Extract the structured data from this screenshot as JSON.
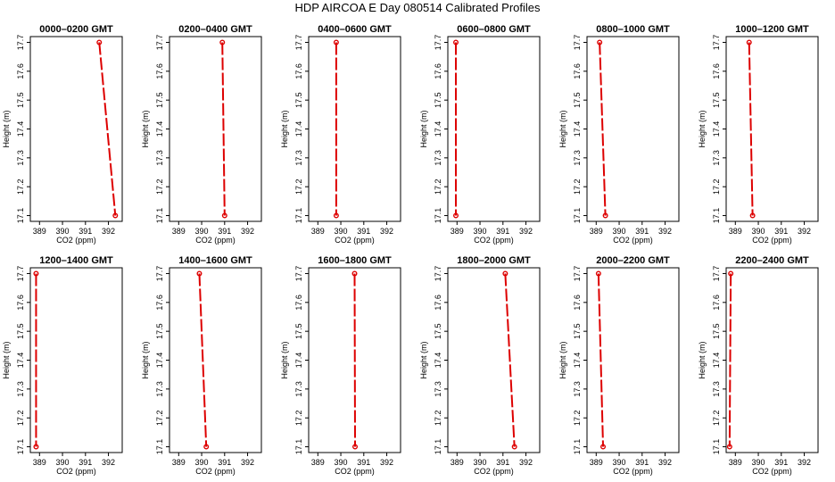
{
  "figure": {
    "title": "HDP  AIRCOA E  Day 080514  Calibrated Profiles",
    "series_color": "#dd0000"
  },
  "chart_data": [
    {
      "type": "line",
      "title": "0000–0200 GMT",
      "xlabel": "CO2 (ppm)",
      "ylabel": "Height (m)",
      "xlim": [
        388.6,
        392.6
      ],
      "ylim": [
        17.08,
        17.72
      ],
      "xticks": [
        389,
        390,
        391,
        392
      ],
      "yticks": [
        17.1,
        17.2,
        17.3,
        17.4,
        17.5,
        17.6,
        17.7
      ],
      "xtick_labels": [
        "389",
        "390",
        "391",
        "392"
      ],
      "ytick_labels": [
        "17.1",
        "17.2",
        "17.3",
        "17.4",
        "17.5",
        "17.6",
        "17.7"
      ],
      "grid": false,
      "series": [
        {
          "x": [
            391.6,
            392.3
          ],
          "y": [
            17.7,
            17.1
          ]
        }
      ]
    },
    {
      "type": "line",
      "title": "0200–0400 GMT",
      "xlabel": "CO2 (ppm)",
      "ylabel": "Height (m)",
      "xlim": [
        388.6,
        392.6
      ],
      "ylim": [
        17.08,
        17.72
      ],
      "xticks": [
        389,
        390,
        391,
        392
      ],
      "yticks": [
        17.1,
        17.2,
        17.3,
        17.4,
        17.5,
        17.6,
        17.7
      ],
      "xtick_labels": [
        "389",
        "390",
        "391",
        "392"
      ],
      "ytick_labels": [
        "17.1",
        "17.2",
        "17.3",
        "17.4",
        "17.5",
        "17.6",
        "17.7"
      ],
      "grid": false,
      "series": [
        {
          "x": [
            390.9,
            391.0
          ],
          "y": [
            17.7,
            17.1
          ]
        }
      ]
    },
    {
      "type": "line",
      "title": "0400–0600 GMT",
      "xlabel": "CO2 (ppm)",
      "ylabel": "Height (m)",
      "xlim": [
        388.6,
        392.6
      ],
      "ylim": [
        17.08,
        17.72
      ],
      "xticks": [
        389,
        390,
        391,
        392
      ],
      "yticks": [
        17.1,
        17.2,
        17.3,
        17.4,
        17.5,
        17.6,
        17.7
      ],
      "xtick_labels": [
        "389",
        "390",
        "391",
        "392"
      ],
      "ytick_labels": [
        "17.1",
        "17.2",
        "17.3",
        "17.4",
        "17.5",
        "17.6",
        "17.7"
      ],
      "grid": false,
      "series": [
        {
          "x": [
            389.8,
            389.8
          ],
          "y": [
            17.7,
            17.1
          ]
        }
      ]
    },
    {
      "type": "line",
      "title": "0600–0800 GMT",
      "xlabel": "CO2 (ppm)",
      "ylabel": "Height (m)",
      "xlim": [
        388.6,
        392.6
      ],
      "ylim": [
        17.08,
        17.72
      ],
      "xticks": [
        389,
        390,
        391,
        392
      ],
      "yticks": [
        17.1,
        17.2,
        17.3,
        17.4,
        17.5,
        17.6,
        17.7
      ],
      "xtick_labels": [
        "389",
        "390",
        "391",
        "392"
      ],
      "ytick_labels": [
        "17.1",
        "17.2",
        "17.3",
        "17.4",
        "17.5",
        "17.6",
        "17.7"
      ],
      "grid": false,
      "series": [
        {
          "x": [
            388.95,
            388.95
          ],
          "y": [
            17.7,
            17.1
          ]
        }
      ]
    },
    {
      "type": "line",
      "title": "0800–1000 GMT",
      "xlabel": "CO2 (ppm)",
      "ylabel": "Height (m)",
      "xlim": [
        388.6,
        392.6
      ],
      "ylim": [
        17.08,
        17.72
      ],
      "xticks": [
        389,
        390,
        391,
        392
      ],
      "yticks": [
        17.1,
        17.2,
        17.3,
        17.4,
        17.5,
        17.6,
        17.7
      ],
      "xtick_labels": [
        "389",
        "390",
        "391",
        "392"
      ],
      "ytick_labels": [
        "17.1",
        "17.2",
        "17.3",
        "17.4",
        "17.5",
        "17.6",
        "17.7"
      ],
      "grid": false,
      "series": [
        {
          "x": [
            389.15,
            389.4
          ],
          "y": [
            17.7,
            17.1
          ]
        }
      ]
    },
    {
      "type": "line",
      "title": "1000–1200 GMT",
      "xlabel": "CO2 (ppm)",
      "ylabel": "Height (m)",
      "xlim": [
        388.6,
        392.6
      ],
      "ylim": [
        17.08,
        17.72
      ],
      "xticks": [
        389,
        390,
        391,
        392
      ],
      "yticks": [
        17.1,
        17.2,
        17.3,
        17.4,
        17.5,
        17.6,
        17.7
      ],
      "xtick_labels": [
        "389",
        "390",
        "391",
        "392"
      ],
      "ytick_labels": [
        "17.1",
        "17.2",
        "17.3",
        "17.4",
        "17.5",
        "17.6",
        "17.7"
      ],
      "grid": false,
      "series": [
        {
          "x": [
            389.6,
            389.75
          ],
          "y": [
            17.7,
            17.1
          ]
        }
      ]
    },
    {
      "type": "line",
      "title": "1200–1400 GMT",
      "xlabel": "CO2 (ppm)",
      "ylabel": "Height (m)",
      "xlim": [
        388.6,
        392.6
      ],
      "ylim": [
        17.08,
        17.72
      ],
      "xticks": [
        389,
        390,
        391,
        392
      ],
      "yticks": [
        17.1,
        17.2,
        17.3,
        17.4,
        17.5,
        17.6,
        17.7
      ],
      "xtick_labels": [
        "389",
        "390",
        "391",
        "392"
      ],
      "ytick_labels": [
        "17.1",
        "17.2",
        "17.3",
        "17.4",
        "17.5",
        "17.6",
        "17.7"
      ],
      "grid": false,
      "series": [
        {
          "x": [
            388.85,
            388.85
          ],
          "y": [
            17.7,
            17.1
          ]
        }
      ]
    },
    {
      "type": "line",
      "title": "1400–1600 GMT",
      "xlabel": "CO2 (ppm)",
      "ylabel": "Height (m)",
      "xlim": [
        388.6,
        392.6
      ],
      "ylim": [
        17.08,
        17.72
      ],
      "xticks": [
        389,
        390,
        391,
        392
      ],
      "yticks": [
        17.1,
        17.2,
        17.3,
        17.4,
        17.5,
        17.6,
        17.7
      ],
      "xtick_labels": [
        "389",
        "390",
        "391",
        "392"
      ],
      "ytick_labels": [
        "17.1",
        "17.2",
        "17.3",
        "17.4",
        "17.5",
        "17.6",
        "17.7"
      ],
      "grid": false,
      "series": [
        {
          "x": [
            389.9,
            390.2
          ],
          "y": [
            17.7,
            17.1
          ]
        }
      ]
    },
    {
      "type": "line",
      "title": "1600–1800 GMT",
      "xlabel": "CO2 (ppm)",
      "ylabel": "Height (m)",
      "xlim": [
        388.6,
        392.6
      ],
      "ylim": [
        17.08,
        17.72
      ],
      "xticks": [
        389,
        390,
        391,
        392
      ],
      "yticks": [
        17.1,
        17.2,
        17.3,
        17.4,
        17.5,
        17.6,
        17.7
      ],
      "xtick_labels": [
        "389",
        "390",
        "391",
        "392"
      ],
      "ytick_labels": [
        "17.1",
        "17.2",
        "17.3",
        "17.4",
        "17.5",
        "17.6",
        "17.7"
      ],
      "grid": false,
      "series": [
        {
          "x": [
            390.6,
            390.62
          ],
          "y": [
            17.7,
            17.1
          ]
        }
      ]
    },
    {
      "type": "line",
      "title": "1800–2000 GMT",
      "xlabel": "CO2 (ppm)",
      "ylabel": "Height (m)",
      "xlim": [
        388.6,
        392.6
      ],
      "ylim": [
        17.08,
        17.72
      ],
      "xticks": [
        389,
        390,
        391,
        392
      ],
      "yticks": [
        17.1,
        17.2,
        17.3,
        17.4,
        17.5,
        17.6,
        17.7
      ],
      "xtick_labels": [
        "389",
        "390",
        "391",
        "392"
      ],
      "ytick_labels": [
        "17.1",
        "17.2",
        "17.3",
        "17.4",
        "17.5",
        "17.6",
        "17.7"
      ],
      "grid": false,
      "series": [
        {
          "x": [
            391.1,
            391.5
          ],
          "y": [
            17.7,
            17.1
          ]
        }
      ]
    },
    {
      "type": "line",
      "title": "2000–2200 GMT",
      "xlabel": "CO2 (ppm)",
      "ylabel": "Height (m)",
      "xlim": [
        388.6,
        392.6
      ],
      "ylim": [
        17.08,
        17.72
      ],
      "xticks": [
        389,
        390,
        391,
        392
      ],
      "yticks": [
        17.1,
        17.2,
        17.3,
        17.4,
        17.5,
        17.6,
        17.7
      ],
      "xtick_labels": [
        "389",
        "390",
        "391",
        "392"
      ],
      "ytick_labels": [
        "17.1",
        "17.2",
        "17.3",
        "17.4",
        "17.5",
        "17.6",
        "17.7"
      ],
      "grid": false,
      "series": [
        {
          "x": [
            389.1,
            389.3
          ],
          "y": [
            17.7,
            17.1
          ]
        }
      ]
    },
    {
      "type": "line",
      "title": "2200–2400 GMT",
      "xlabel": "CO2 (ppm)",
      "ylabel": "Height (m)",
      "xlim": [
        388.6,
        392.6
      ],
      "ylim": [
        17.08,
        17.72
      ],
      "xticks": [
        389,
        390,
        391,
        392
      ],
      "yticks": [
        17.1,
        17.2,
        17.3,
        17.4,
        17.5,
        17.6,
        17.7
      ],
      "xtick_labels": [
        "389",
        "390",
        "391",
        "392"
      ],
      "ytick_labels": [
        "17.1",
        "17.2",
        "17.3",
        "17.4",
        "17.5",
        "17.6",
        "17.7"
      ],
      "grid": false,
      "series": [
        {
          "x": [
            388.8,
            388.75
          ],
          "y": [
            17.7,
            17.1
          ]
        }
      ]
    }
  ]
}
